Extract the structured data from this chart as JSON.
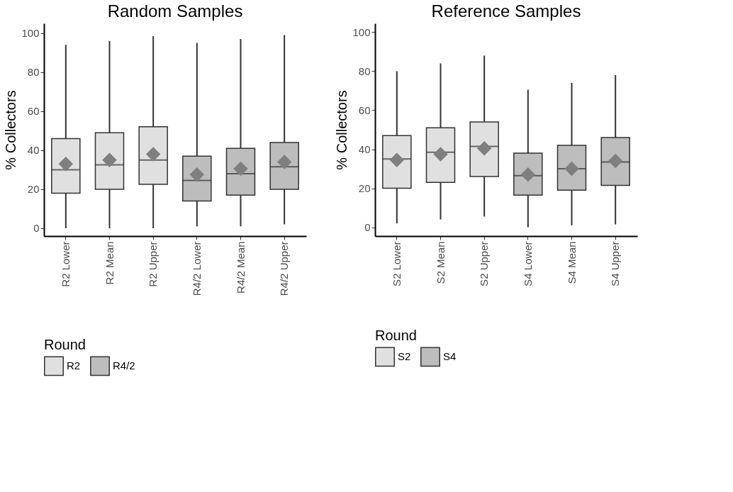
{
  "chart_data": [
    {
      "type": "box",
      "title": "Random Samples",
      "ylabel": "% Collectors",
      "legend_title": "Round",
      "legend": "bottom",
      "categories": [
        "R2 Lower",
        "R2 Mean",
        "R2 Upper",
        "R4/2 Lower",
        "R4/2 Mean",
        "R4/2 Upper"
      ],
      "ylim": [
        -4,
        105
      ],
      "yticks": [
        0,
        20,
        40,
        60,
        80,
        100
      ],
      "series": [
        {
          "name": "R2",
          "color": "#e0e0e0",
          "boxes": [
            {
              "low": 0,
              "q1": 18,
              "median": 30,
              "q3": 46,
              "high": 94,
              "mean": 33
            },
            {
              "low": 0,
              "q1": 20,
              "median": 32.5,
              "q3": 49,
              "high": 96,
              "mean": 35
            },
            {
              "low": 0,
              "q1": 22.5,
              "median": 35,
              "q3": 52,
              "high": 98.5,
              "mean": 38
            },
            null,
            null,
            null
          ]
        },
        {
          "name": "R4/2",
          "color": "#bdbdbd",
          "boxes": [
            null,
            null,
            null,
            {
              "low": 1,
              "q1": 14,
              "median": 24.5,
              "q3": 37,
              "high": 95,
              "mean": 27.5
            },
            {
              "low": 1,
              "q1": 17,
              "median": 28,
              "q3": 41,
              "high": 97,
              "mean": 30.5
            },
            {
              "low": 2,
              "q1": 20,
              "median": 31.5,
              "q3": 44,
              "high": 99,
              "mean": 34
            }
          ]
        }
      ]
    },
    {
      "type": "box",
      "title": "Reference Samples",
      "ylabel": "% Collectors",
      "legend_title": "Round",
      "legend": "bottom",
      "categories": [
        "S2 Lower",
        "S2 Mean",
        "S2 Upper",
        "S4 Lower",
        "S4 Mean",
        "S4 Upper"
      ],
      "ylim": [
        -4.5,
        104.5
      ],
      "yticks": [
        0,
        20,
        40,
        60,
        80,
        100
      ],
      "series": [
        {
          "name": "S2",
          "color": "#e0e0e0",
          "boxes": [
            {
              "low": 2,
              "q1": 20,
              "median": 35,
              "q3": 47,
              "high": 80,
              "mean": 34.5
            },
            {
              "low": 4,
              "q1": 23,
              "median": 38.5,
              "q3": 51,
              "high": 84,
              "mean": 37.5
            },
            {
              "low": 5.5,
              "q1": 26,
              "median": 41.5,
              "q3": 54,
              "high": 88,
              "mean": 40.5
            },
            null,
            null,
            null
          ]
        },
        {
          "name": "S4",
          "color": "#bdbdbd",
          "boxes": [
            null,
            null,
            null,
            {
              "low": 0,
              "q1": 16.5,
              "median": 26.5,
              "q3": 38,
              "high": 70.5,
              "mean": 27
            },
            {
              "low": 1,
              "q1": 19,
              "median": 30,
              "q3": 42,
              "high": 74,
              "mean": 30
            },
            {
              "low": 1.5,
              "q1": 21.5,
              "median": 33.5,
              "q3": 46,
              "high": 78,
              "mean": 34
            }
          ]
        }
      ]
    }
  ]
}
